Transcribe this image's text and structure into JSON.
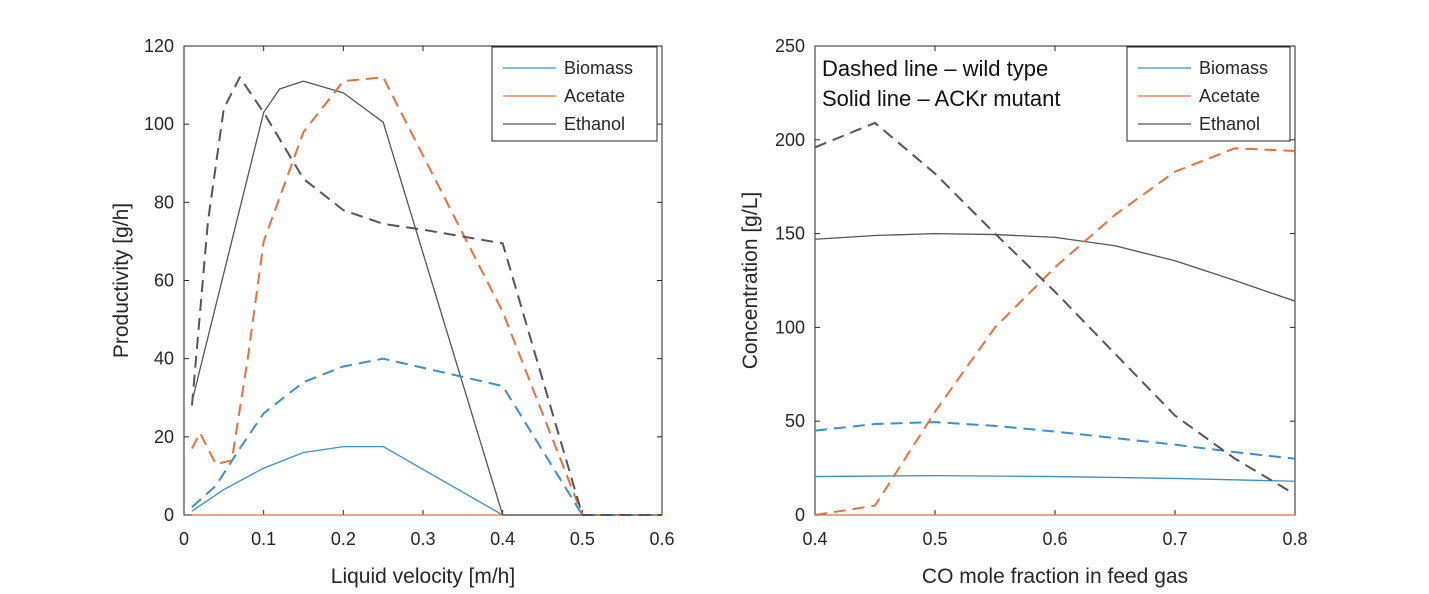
{
  "chart_data": [
    {
      "type": "line",
      "title": "",
      "xlabel": "Liquid velocity [m/h]",
      "ylabel": "Productivity [g/h]",
      "xlim": [
        0,
        0.6
      ],
      "ylim": [
        0,
        120
      ],
      "xticks": [
        "0",
        "0.1",
        "0.2",
        "0.3",
        "0.4",
        "0.5",
        "0.6"
      ],
      "yticks": [
        "0",
        "20",
        "40",
        "60",
        "80",
        "100",
        "120"
      ],
      "grid": false,
      "legend_position": "top-right",
      "legend": [
        "Biomass",
        "Acetate",
        "Ethanol"
      ],
      "series": [
        {
          "name": "Biomass",
          "style": "solid",
          "color": "#3a8fd1",
          "x": [
            0.01,
            0.05,
            0.1,
            0.15,
            0.2,
            0.25,
            0.4,
            0.5,
            0.6
          ],
          "y": [
            1,
            6.5,
            12,
            16,
            17.5,
            17.5,
            0,
            0,
            0
          ]
        },
        {
          "name": "Acetate",
          "style": "solid",
          "color": "#e8703a",
          "x": [
            0.01,
            0.6
          ],
          "y": [
            0,
            0
          ]
        },
        {
          "name": "Ethanol",
          "style": "solid",
          "color": "#555555",
          "x": [
            0.01,
            0.1,
            0.12,
            0.15,
            0.2,
            0.25,
            0.4,
            0.5,
            0.6
          ],
          "y": [
            29,
            103,
            109,
            111,
            108,
            100.5,
            0,
            0,
            0
          ]
        },
        {
          "name": "Biomass",
          "style": "dashed",
          "color": "#3a8fd1",
          "x": [
            0.01,
            0.04,
            0.07,
            0.1,
            0.15,
            0.2,
            0.25,
            0.4,
            0.5,
            0.6
          ],
          "y": [
            2,
            7.5,
            17,
            26,
            34,
            38,
            40,
            33,
            0,
            0
          ]
        },
        {
          "name": "Acetate",
          "style": "dashed",
          "color": "#e8703a",
          "x": [
            0.01,
            0.02,
            0.04,
            0.06,
            0.08,
            0.1,
            0.15,
            0.2,
            0.25,
            0.4,
            0.5,
            0.6
          ],
          "y": [
            17,
            21,
            13,
            14,
            40,
            70,
            98,
            111,
            112,
            52,
            0,
            0
          ]
        },
        {
          "name": "Ethanol",
          "style": "dashed",
          "color": "#555555",
          "x": [
            0.01,
            0.03,
            0.05,
            0.07,
            0.1,
            0.15,
            0.2,
            0.25,
            0.3,
            0.4,
            0.5,
            0.6
          ],
          "y": [
            28,
            75,
            104,
            112,
            103,
            86,
            78,
            74.5,
            73,
            69.5,
            0,
            0
          ]
        }
      ]
    },
    {
      "type": "line",
      "title": "",
      "xlabel": "CO mole fraction in feed gas",
      "ylabel": "Concentration [g/L]",
      "xlim": [
        0.4,
        0.8
      ],
      "ylim": [
        0,
        250
      ],
      "xticks": [
        "0.4",
        "0.5",
        "0.6",
        "0.7",
        "0.8"
      ],
      "yticks": [
        "0",
        "50",
        "100",
        "150",
        "200",
        "250"
      ],
      "grid": false,
      "legend_position": "top-right",
      "legend": [
        "Biomass",
        "Acetate",
        "Ethanol"
      ],
      "annotations": [
        "Dashed line – wild type",
        "Solid line – ACKr mutant"
      ],
      "series": [
        {
          "name": "Biomass",
          "style": "solid",
          "color": "#3a8fd1",
          "x": [
            0.4,
            0.5,
            0.6,
            0.7,
            0.8
          ],
          "y": [
            20.5,
            21,
            20.5,
            19.5,
            18
          ]
        },
        {
          "name": "Acetate",
          "style": "solid",
          "color": "#e8703a",
          "x": [
            0.4,
            0.8
          ],
          "y": [
            0,
            0
          ]
        },
        {
          "name": "Ethanol",
          "style": "solid",
          "color": "#555555",
          "x": [
            0.4,
            0.45,
            0.5,
            0.55,
            0.6,
            0.65,
            0.7,
            0.75,
            0.8
          ],
          "y": [
            147,
            149,
            150,
            149.5,
            148,
            143.5,
            135.5,
            125,
            114
          ]
        },
        {
          "name": "Biomass",
          "style": "dashed",
          "color": "#3a8fd1",
          "x": [
            0.4,
            0.45,
            0.5,
            0.55,
            0.6,
            0.65,
            0.7,
            0.75,
            0.8
          ],
          "y": [
            45,
            48.5,
            49.5,
            47.5,
            44.5,
            41,
            37.5,
            33.5,
            30
          ]
        },
        {
          "name": "Acetate",
          "style": "dashed",
          "color": "#e8703a",
          "x": [
            0.4,
            0.45,
            0.5,
            0.55,
            0.6,
            0.65,
            0.7,
            0.75,
            0.8
          ],
          "y": [
            0,
            5,
            55,
            100,
            132,
            160,
            183,
            195.5,
            194
          ]
        },
        {
          "name": "Ethanol",
          "style": "dashed",
          "color": "#555555",
          "x": [
            0.4,
            0.45,
            0.5,
            0.55,
            0.6,
            0.65,
            0.7,
            0.75,
            0.8
          ],
          "y": [
            196,
            209,
            182,
            150,
            119,
            86,
            53,
            30,
            11
          ]
        }
      ]
    }
  ]
}
